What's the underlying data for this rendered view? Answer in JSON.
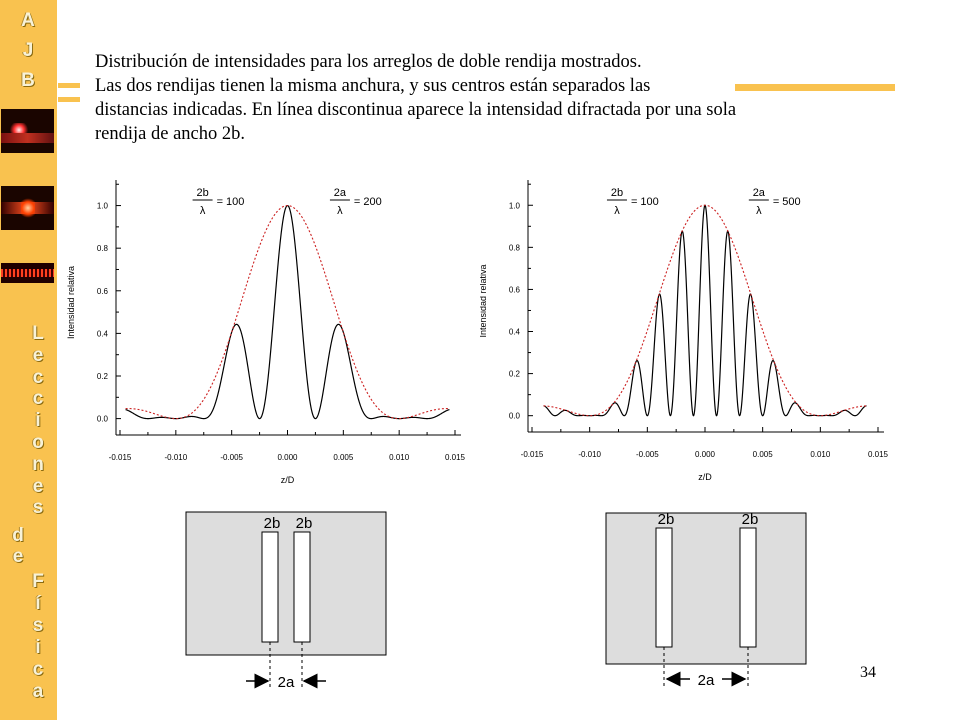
{
  "sidebar": {
    "top_letters": [
      "A",
      "J",
      "B"
    ],
    "vertical_word_1": "Lecciones",
    "vertical_word_2": "de",
    "vertical_word_3": "Física"
  },
  "title": {
    "lines": [
      "Distribución de intensidades para los arreglos de doble rendija mostrados.",
      "Las dos rendijas tienen la misma anchura, y sus centros están separados las",
      "distancias indicadas. En línea discontinua aparece la intensidad difractada por una sola",
      "rendija de ancho 2b."
    ]
  },
  "chart_data": [
    {
      "type": "line",
      "xlabel": "z/D",
      "ylabel": "Intensidad relativa",
      "xlim": [
        -0.015,
        0.015
      ],
      "ylim": [
        -0.03,
        1.12
      ],
      "x_ticks": [
        "-0.015",
        "-0.010",
        "-0.005",
        "0.000",
        "0.005",
        "0.010",
        "0.015"
      ],
      "y_ticks": [
        "0.0",
        "0.2",
        "0.4",
        "0.6",
        "0.8",
        "1.0"
      ],
      "annotations": {
        "b_num": "2b",
        "b_den": "λ",
        "b_val": "= 100",
        "a_num": "2a",
        "a_den": "λ",
        "a_val": "= 200"
      },
      "series": [
        {
          "style": "solid",
          "color": "#000000",
          "b": 100,
          "a": 200,
          "kind": "double-slit",
          "x_range": [
            -0.0145,
            0.0145
          ]
        },
        {
          "style": "dashed",
          "color": "#cc2020",
          "b": 100,
          "kind": "single-slit envelope",
          "x_range": [
            -0.0145,
            0.0145
          ]
        }
      ]
    },
    {
      "type": "line",
      "xlabel": "z/D",
      "ylabel": "Intensidad relativa",
      "xlim": [
        -0.015,
        0.015
      ],
      "ylim": [
        -0.03,
        1.12
      ],
      "x_ticks": [
        "-0.015",
        "-0.010",
        "-0.005",
        "0.000",
        "0.005",
        "0.010",
        "0.015"
      ],
      "y_ticks": [
        "0.0",
        "0.2",
        "0.4",
        "0.6",
        "0.8",
        "1.0"
      ],
      "annotations": {
        "b_num": "2b",
        "b_den": "λ",
        "b_val": "= 100",
        "a_num": "2a",
        "a_den": "λ",
        "a_val": "= 500"
      },
      "series": [
        {
          "style": "solid",
          "color": "#000000",
          "b": 100,
          "a": 500,
          "kind": "double-slit",
          "x_range": [
            -0.014,
            0.014
          ]
        },
        {
          "style": "dashed",
          "color": "#cc2020",
          "b": 100,
          "kind": "single-slit envelope",
          "x_range": [
            -0.014,
            0.014
          ]
        }
      ]
    }
  ],
  "slit_diagrams": [
    {
      "slit_label_1": "2b",
      "slit_label_2": "2b",
      "separation_label": "2a"
    },
    {
      "slit_label_1": "2b",
      "slit_label_2": "2b",
      "separation_label": "2a"
    }
  ],
  "page_number": "34"
}
